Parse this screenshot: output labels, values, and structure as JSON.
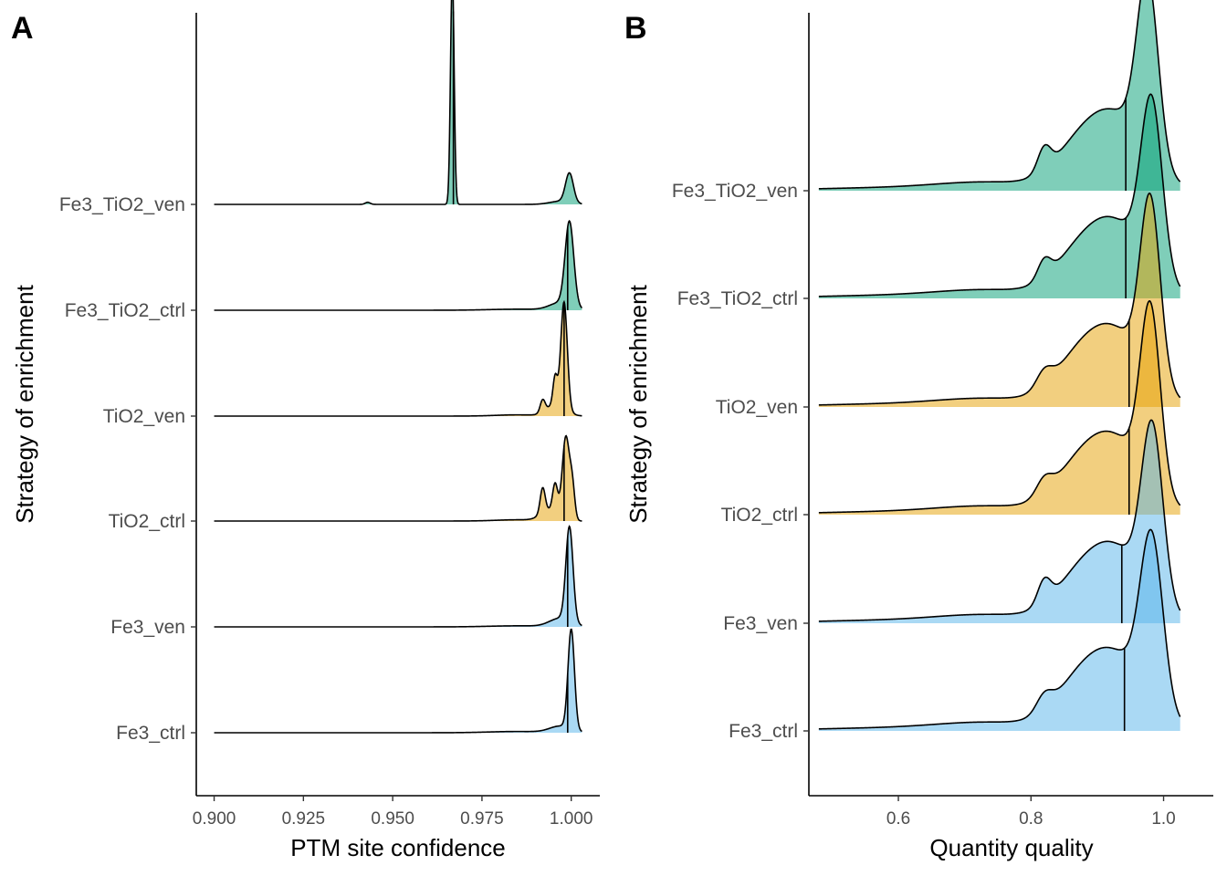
{
  "chart_data": [
    {
      "panel": "A",
      "type": "ridgeline",
      "xlabel": "PTM site confidence",
      "ylabel": "Strategy of enrichment",
      "xlim": [
        0.895,
        1.008
      ],
      "xticks": [
        0.9,
        0.925,
        0.95,
        0.975,
        1.0
      ],
      "xtick_labels": [
        "0.900",
        "0.925",
        "0.950",
        "0.975",
        "1.000"
      ],
      "categories": [
        "Fe3_ctrl",
        "Fe3_ven",
        "TiO2_ctrl",
        "TiO2_ven",
        "Fe3_TiO2_ctrl",
        "Fe3_TiO2_ven"
      ],
      "grid": false,
      "series": [
        {
          "category": "Fe3_ctrl",
          "color": "#56B4E9",
          "x_range": [
            0.9,
            1.003
          ],
          "median": 0.999,
          "peaks": [
            {
              "x": 1.0,
              "height": 0.95,
              "width": 0.0009
            },
            {
              "x": 0.997,
              "height": 0.06,
              "width": 0.003
            },
            {
              "x": 0.985,
              "height": 0.012,
              "width": 0.008
            }
          ]
        },
        {
          "category": "Fe3_ven",
          "color": "#56B4E9",
          "x_range": [
            0.9,
            1.003
          ],
          "median": 0.999,
          "peaks": [
            {
              "x": 0.9995,
              "height": 0.9,
              "width": 0.001
            },
            {
              "x": 0.997,
              "height": 0.08,
              "width": 0.003
            },
            {
              "x": 0.985,
              "height": 0.01,
              "width": 0.008
            }
          ]
        },
        {
          "category": "TiO2_ctrl",
          "color": "#E69F00",
          "x_range": [
            0.9,
            1.003
          ],
          "median": 0.998,
          "peaks": [
            {
              "x": 0.9985,
              "height": 0.78,
              "width": 0.001
            },
            {
              "x": 1.0003,
              "height": 0.3,
              "width": 0.0007
            },
            {
              "x": 0.9955,
              "height": 0.27,
              "width": 0.0007
            },
            {
              "x": 0.992,
              "height": 0.24,
              "width": 0.0007
            },
            {
              "x": 0.994,
              "height": 0.1,
              "width": 0.0025
            },
            {
              "x": 0.985,
              "height": 0.012,
              "width": 0.006
            }
          ]
        },
        {
          "category": "TiO2_ven",
          "color": "#E69F00",
          "x_range": [
            0.9,
            1.003
          ],
          "median": 0.998,
          "peaks": [
            {
              "x": 0.998,
              "height": 1.0,
              "width": 0.0009
            },
            {
              "x": 0.9955,
              "height": 0.26,
              "width": 0.0006
            },
            {
              "x": 0.992,
              "height": 0.12,
              "width": 0.0007
            },
            {
              "x": 0.996,
              "height": 0.12,
              "width": 0.0025
            },
            {
              "x": 0.985,
              "height": 0.012,
              "width": 0.006
            }
          ]
        },
        {
          "category": "Fe3_TiO2_ctrl",
          "color": "#009E73",
          "x_range": [
            0.9,
            1.003
          ],
          "median": 0.999,
          "peaks": [
            {
              "x": 0.9995,
              "height": 0.8,
              "width": 0.0012
            },
            {
              "x": 0.997,
              "height": 0.07,
              "width": 0.003
            },
            {
              "x": 0.985,
              "height": 0.01,
              "width": 0.008
            }
          ]
        },
        {
          "category": "Fe3_TiO2_ven",
          "color": "#009E73",
          "x_range": [
            0.9,
            1.003
          ],
          "median": 0.967,
          "peaks": [
            {
              "x": 0.9667,
              "height": 2.2,
              "width": 0.0005
            },
            {
              "x": 0.9995,
              "height": 0.28,
              "width": 0.0011
            },
            {
              "x": 0.943,
              "height": 0.02,
              "width": 0.0007
            },
            {
              "x": 0.997,
              "height": 0.03,
              "width": 0.003
            }
          ]
        }
      ]
    },
    {
      "panel": "B",
      "type": "ridgeline",
      "xlabel": "Quantity quality",
      "ylabel": "Strategy of enrichment",
      "xlim": [
        0.465,
        1.075
      ],
      "xticks": [
        0.6,
        0.8,
        1.0
      ],
      "xtick_labels": [
        "0.6",
        "0.8",
        "1.0"
      ],
      "categories": [
        "Fe3_ctrl",
        "Fe3_ven",
        "TiO2_ctrl",
        "TiO2_ven",
        "Fe3_TiO2_ctrl",
        "Fe3_TiO2_ven"
      ],
      "grid": false,
      "series": [
        {
          "category": "Fe3_ctrl",
          "color": "#56B4E9",
          "x_range": [
            0.48,
            1.025
          ],
          "median": 0.941,
          "peaks": [
            {
              "x": 0.982,
              "height": 1.08,
              "width": 0.017
            },
            {
              "x": 0.93,
              "height": 0.45,
              "width": 0.045
            },
            {
              "x": 0.87,
              "height": 0.22,
              "width": 0.04
            },
            {
              "x": 0.82,
              "height": 0.1,
              "width": 0.012
            },
            {
              "x": 0.74,
              "height": 0.05,
              "width": 0.08
            },
            {
              "x": 0.58,
              "height": 0.018,
              "width": 0.12
            }
          ]
        },
        {
          "category": "Fe3_ven",
          "color": "#56B4E9",
          "x_range": [
            0.48,
            1.025
          ],
          "median": 0.937,
          "peaks": [
            {
              "x": 0.983,
              "height": 1.1,
              "width": 0.016
            },
            {
              "x": 0.93,
              "height": 0.45,
              "width": 0.045
            },
            {
              "x": 0.87,
              "height": 0.2,
              "width": 0.04
            },
            {
              "x": 0.82,
              "height": 0.15,
              "width": 0.01
            },
            {
              "x": 0.74,
              "height": 0.05,
              "width": 0.08
            },
            {
              "x": 0.58,
              "height": 0.018,
              "width": 0.12
            }
          ]
        },
        {
          "category": "TiO2_ctrl",
          "color": "#E69F00",
          "x_range": [
            0.48,
            1.025
          ],
          "median": 0.948,
          "peaks": [
            {
              "x": 0.98,
              "height": 1.15,
              "width": 0.015
            },
            {
              "x": 0.93,
              "height": 0.45,
              "width": 0.045
            },
            {
              "x": 0.87,
              "height": 0.22,
              "width": 0.04
            },
            {
              "x": 0.82,
              "height": 0.1,
              "width": 0.012
            },
            {
              "x": 0.74,
              "height": 0.05,
              "width": 0.08
            },
            {
              "x": 0.58,
              "height": 0.018,
              "width": 0.12
            }
          ]
        },
        {
          "category": "TiO2_ven",
          "color": "#E69F00",
          "x_range": [
            0.48,
            1.025
          ],
          "median": 0.948,
          "peaks": [
            {
              "x": 0.98,
              "height": 1.15,
              "width": 0.015
            },
            {
              "x": 0.93,
              "height": 0.45,
              "width": 0.045
            },
            {
              "x": 0.87,
              "height": 0.22,
              "width": 0.04
            },
            {
              "x": 0.82,
              "height": 0.1,
              "width": 0.012
            },
            {
              "x": 0.74,
              "height": 0.05,
              "width": 0.08
            },
            {
              "x": 0.58,
              "height": 0.018,
              "width": 0.12
            }
          ]
        },
        {
          "category": "Fe3_TiO2_ctrl",
          "color": "#009E73",
          "x_range": [
            0.48,
            1.025
          ],
          "median": 0.943,
          "peaks": [
            {
              "x": 0.982,
              "height": 1.1,
              "width": 0.016
            },
            {
              "x": 0.93,
              "height": 0.45,
              "width": 0.045
            },
            {
              "x": 0.87,
              "height": 0.2,
              "width": 0.04
            },
            {
              "x": 0.82,
              "height": 0.12,
              "width": 0.01
            },
            {
              "x": 0.74,
              "height": 0.05,
              "width": 0.08
            },
            {
              "x": 0.58,
              "height": 0.018,
              "width": 0.12
            }
          ]
        },
        {
          "category": "Fe3_TiO2_ven",
          "color": "#009E73",
          "x_range": [
            0.48,
            1.025
          ],
          "median": 0.943,
          "peaks": [
            {
              "x": 0.976,
              "height": 1.15,
              "width": 0.016
            },
            {
              "x": 0.93,
              "height": 0.45,
              "width": 0.045
            },
            {
              "x": 0.87,
              "height": 0.2,
              "width": 0.04
            },
            {
              "x": 0.82,
              "height": 0.15,
              "width": 0.01
            },
            {
              "x": 0.74,
              "height": 0.05,
              "width": 0.08
            },
            {
              "x": 0.58,
              "height": 0.018,
              "width": 0.12
            }
          ]
        }
      ]
    }
  ]
}
